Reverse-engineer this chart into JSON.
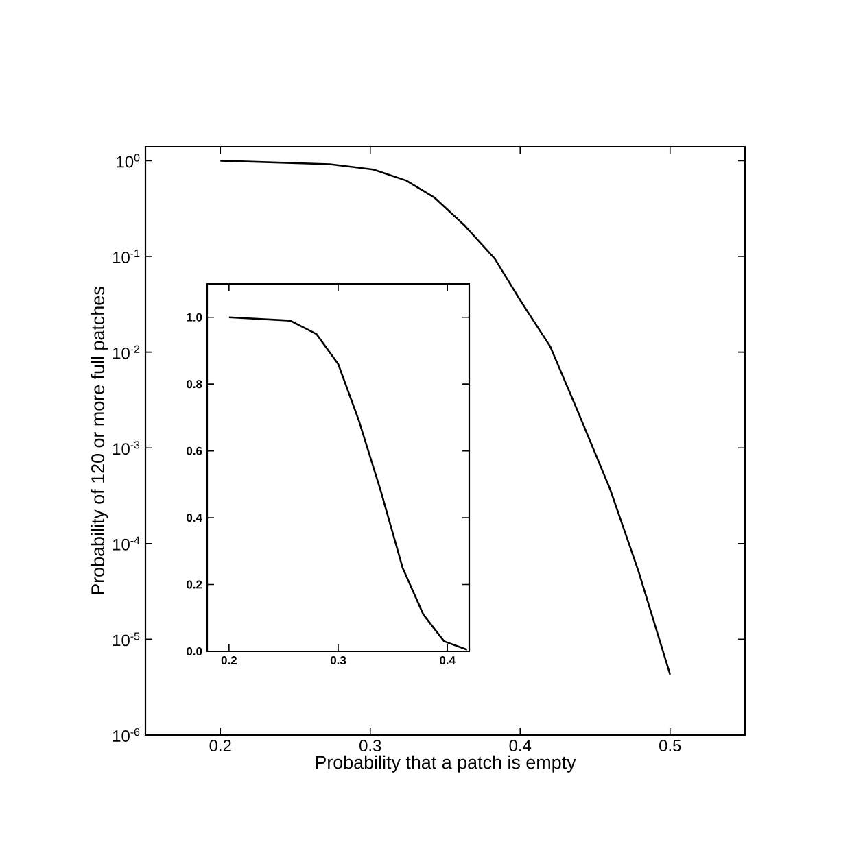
{
  "chart_data": [
    {
      "type": "line",
      "xlabel": "Probability that a patch is empty",
      "ylabel": "Probability of 120 or more full patches",
      "log": "y",
      "x": [
        0.2,
        0.273,
        0.302,
        0.324,
        0.343,
        0.363,
        0.383,
        0.401,
        0.42,
        0.438,
        0.46,
        0.479,
        0.5
      ],
      "series": [
        {
          "color": "#000000",
          "values": [
            1.0,
            0.92,
            0.81,
            0.62,
            0.41,
            0.21,
            0.095,
            0.033,
            0.0115,
            0.0025,
            0.00037,
            5.1e-05,
            4.3e-06
          ]
        }
      ],
      "xlim": [
        0.15,
        0.55
      ],
      "ylim": [
        1e-06,
        1.4
      ],
      "xticks": [
        0.2,
        0.3,
        0.4,
        0.5
      ],
      "yticks": [
        {
          "value": 1,
          "label": "10$^{0}$"
        },
        {
          "value": 0.1,
          "label": "10$^{-1}$"
        },
        {
          "value": 0.01,
          "label": "10$^{-2}$"
        },
        {
          "value": 0.001,
          "label": "10$^{-3}$"
        },
        {
          "value": 0.0001,
          "label": "10$^{-4}$"
        },
        {
          "value": 1e-05,
          "label": "10$^{-5}$"
        },
        {
          "value": 1e-06,
          "label": "10$^{-6}$"
        }
      ]
    },
    {
      "type": "line",
      "x": [
        0.2,
        0.256,
        0.28,
        0.3,
        0.319,
        0.339,
        0.359,
        0.378,
        0.397,
        0.418
      ],
      "series": [
        {
          "color": "#000000",
          "values": [
            1.0,
            0.99,
            0.95,
            0.86,
            0.69,
            0.48,
            0.25,
            0.11,
            0.03,
            0.005
          ]
        }
      ],
      "xlim": [
        0.18,
        0.42
      ],
      "ylim": [
        0,
        1.1
      ],
      "xticks": [
        0.2,
        0.3,
        0.4
      ],
      "yticks": [
        {
          "value": 0,
          "label": "0.0"
        },
        {
          "value": 0.2,
          "label": "0.2"
        },
        {
          "value": 0.4,
          "label": "0.4"
        },
        {
          "value": 0.6,
          "label": "0.6"
        },
        {
          "value": 0.8,
          "label": "0.8"
        },
        {
          "value": 1.0,
          "label": "1.0"
        }
      ]
    }
  ]
}
